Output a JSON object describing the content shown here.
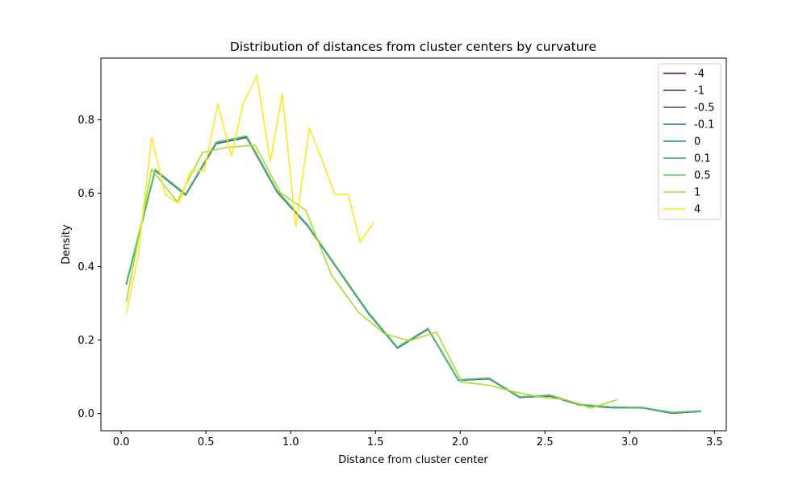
{
  "chart_data": {
    "type": "line",
    "title": "Distribution of distances from cluster centers by curvature",
    "xlabel": "Distance from cluster center",
    "ylabel": "Density",
    "xlim": [
      -0.12,
      3.57
    ],
    "ylim": [
      -0.047,
      0.968
    ],
    "xticks": [
      0.0,
      0.5,
      1.0,
      1.5,
      2.0,
      2.5,
      3.0,
      3.5
    ],
    "xtick_labels": [
      "0.0",
      "0.5",
      "1.0",
      "1.5",
      "2.0",
      "2.5",
      "3.0",
      "3.5"
    ],
    "yticks": [
      0.0,
      0.2,
      0.4,
      0.6,
      0.8
    ],
    "ytick_labels": [
      "0.0",
      "0.2",
      "0.4",
      "0.6",
      "0.8"
    ],
    "grid": false,
    "legend_position": "top-right",
    "series": [
      {
        "name": "-4",
        "color": "#440154",
        "x": [
          0.03,
          0.1,
          0.2,
          0.38,
          0.56,
          0.74,
          0.92,
          1.1,
          1.28,
          1.46,
          1.63,
          1.81,
          1.99,
          2.17,
          2.35,
          2.53,
          2.71,
          2.89,
          3.07,
          3.25,
          3.42
        ],
        "y": [
          0.352,
          0.478,
          0.662,
          0.595,
          0.735,
          0.752,
          0.603,
          0.511,
          0.391,
          0.272,
          0.178,
          0.23,
          0.09,
          0.095,
          0.044,
          0.048,
          0.023,
          0.016,
          0.016,
          0.001,
          0.006
        ]
      },
      {
        "name": "-1",
        "color": "#472c7a",
        "x": [
          0.03,
          0.1,
          0.2,
          0.38,
          0.56,
          0.74,
          0.92,
          1.1,
          1.28,
          1.46,
          1.63,
          1.81,
          1.99,
          2.17,
          2.35,
          2.53,
          2.71,
          2.89,
          3.07,
          3.25,
          3.42
        ],
        "y": [
          0.353,
          0.479,
          0.662,
          0.595,
          0.736,
          0.753,
          0.604,
          0.511,
          0.391,
          0.272,
          0.179,
          0.23,
          0.09,
          0.096,
          0.044,
          0.048,
          0.023,
          0.016,
          0.016,
          0.001,
          0.006
        ]
      },
      {
        "name": "-0.5",
        "color": "#3b518b",
        "x": [
          0.03,
          0.1,
          0.2,
          0.38,
          0.56,
          0.74,
          0.92,
          1.1,
          1.28,
          1.46,
          1.63,
          1.81,
          1.99,
          2.17,
          2.35,
          2.53,
          2.71,
          2.89,
          3.07,
          3.25,
          3.42
        ],
        "y": [
          0.353,
          0.479,
          0.663,
          0.596,
          0.736,
          0.753,
          0.604,
          0.512,
          0.392,
          0.273,
          0.179,
          0.231,
          0.09,
          0.096,
          0.044,
          0.048,
          0.023,
          0.016,
          0.016,
          0.001,
          0.006
        ]
      },
      {
        "name": "-0.1",
        "color": "#2c718e",
        "x": [
          0.03,
          0.1,
          0.2,
          0.38,
          0.56,
          0.74,
          0.92,
          1.1,
          1.28,
          1.46,
          1.63,
          1.81,
          1.99,
          2.17,
          2.35,
          2.53,
          2.71,
          2.89,
          3.07,
          3.25,
          3.42
        ],
        "y": [
          0.354,
          0.48,
          0.663,
          0.596,
          0.737,
          0.754,
          0.605,
          0.512,
          0.392,
          0.273,
          0.179,
          0.231,
          0.091,
          0.096,
          0.045,
          0.049,
          0.024,
          0.017,
          0.016,
          0.002,
          0.006
        ]
      },
      {
        "name": "0",
        "color": "#21908d",
        "x": [
          0.03,
          0.1,
          0.2,
          0.38,
          0.56,
          0.74,
          0.92,
          1.1,
          1.28,
          1.46,
          1.63,
          1.81,
          1.99,
          2.17,
          2.35,
          2.53,
          2.71,
          2.89,
          3.07,
          3.25,
          3.42
        ],
        "y": [
          0.354,
          0.48,
          0.664,
          0.597,
          0.737,
          0.754,
          0.605,
          0.513,
          0.393,
          0.274,
          0.18,
          0.231,
          0.091,
          0.096,
          0.045,
          0.049,
          0.024,
          0.017,
          0.017,
          0.002,
          0.007
        ]
      },
      {
        "name": "0.1",
        "color": "#27ad81",
        "x": [
          0.03,
          0.1,
          0.2,
          0.38,
          0.56,
          0.74,
          0.92,
          1.1,
          1.28,
          1.46,
          1.63,
          1.81,
          1.99,
          2.17,
          2.35,
          2.53,
          2.71,
          2.89,
          3.07,
          3.25,
          3.42
        ],
        "y": [
          0.355,
          0.481,
          0.664,
          0.597,
          0.738,
          0.755,
          0.606,
          0.513,
          0.393,
          0.274,
          0.18,
          0.232,
          0.091,
          0.097,
          0.045,
          0.049,
          0.024,
          0.017,
          0.017,
          0.002,
          0.007
        ]
      },
      {
        "name": "0.5",
        "color": "#5cc863",
        "x": [
          0.03,
          0.1,
          0.2,
          0.38,
          0.56,
          0.74,
          0.92,
          1.1,
          1.28,
          1.46,
          1.63,
          1.81,
          1.99,
          2.17,
          2.35,
          2.53,
          2.71,
          2.89,
          3.07,
          3.25,
          3.42
        ],
        "y": [
          0.356,
          0.482,
          0.665,
          0.598,
          0.739,
          0.756,
          0.607,
          0.514,
          0.394,
          0.275,
          0.181,
          0.232,
          0.092,
          0.097,
          0.046,
          0.05,
          0.025,
          0.018,
          0.017,
          0.003,
          0.007
        ]
      },
      {
        "name": "1",
        "color": "#aadc32",
        "x": [
          0.03,
          0.18,
          0.33,
          0.48,
          0.63,
          0.79,
          0.94,
          1.09,
          1.24,
          1.4,
          1.55,
          1.7,
          1.86,
          2.01,
          2.16,
          2.31,
          2.47,
          2.62,
          2.77,
          2.93
        ],
        "y": [
          0.305,
          0.665,
          0.577,
          0.711,
          0.725,
          0.731,
          0.601,
          0.553,
          0.378,
          0.276,
          0.218,
          0.198,
          0.222,
          0.085,
          0.078,
          0.06,
          0.045,
          0.038,
          0.015,
          0.038
        ]
      },
      {
        "name": "4",
        "color": "#fde725",
        "x": [
          0.03,
          0.1,
          0.18,
          0.26,
          0.34,
          0.41,
          0.49,
          0.57,
          0.65,
          0.72,
          0.8,
          0.88,
          0.95,
          1.03,
          1.11,
          1.18,
          1.26,
          1.34,
          1.41,
          1.49
        ],
        "y": [
          0.272,
          0.43,
          0.752,
          0.597,
          0.572,
          0.661,
          0.661,
          0.843,
          0.702,
          0.843,
          0.921,
          0.686,
          0.87,
          0.508,
          0.778,
          0.698,
          0.597,
          0.597,
          0.467,
          0.52
        ]
      }
    ]
  }
}
